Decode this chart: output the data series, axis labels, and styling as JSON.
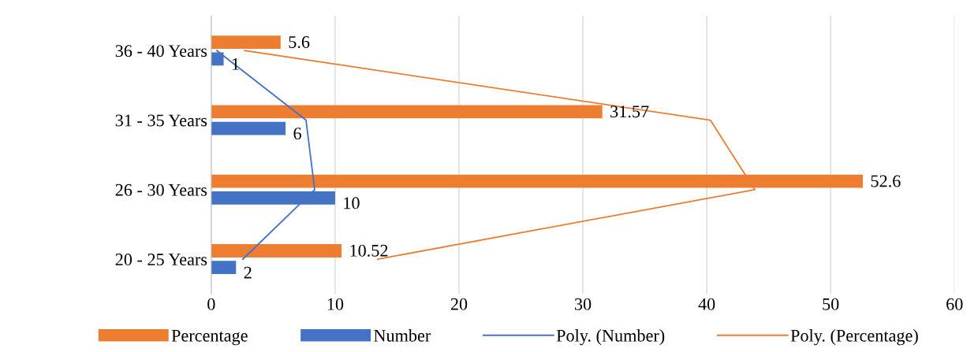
{
  "chart_data": {
    "type": "bar",
    "orientation": "horizontal",
    "categories": [
      "36 - 40 Years",
      "31 - 35 Years",
      "26 - 30 Years",
      "20 - 25 Years"
    ],
    "series": [
      {
        "name": "Percentage",
        "color": "#ed7d31",
        "values": [
          5.6,
          31.57,
          52.6,
          10.52
        ],
        "value_labels": [
          "5.6",
          "31.57",
          "52.6",
          "10.52"
        ]
      },
      {
        "name": "Number",
        "color": "#4472c4",
        "values": [
          1,
          6,
          10,
          2
        ],
        "value_labels": [
          "1",
          "6",
          "10",
          "2"
        ]
      },
      {
        "name": "Poly. (Number)",
        "type": "line",
        "color": "#4472c4",
        "values": [
          0.45,
          7.65,
          8.35,
          2.55
        ]
      },
      {
        "name": "Poly. (Percentage)",
        "type": "line",
        "color": "#ed7d31",
        "values": [
          2.69,
          40.29,
          43.87,
          13.43
        ]
      }
    ],
    "xlim": [
      0,
      60
    ],
    "xticks": [
      0,
      10,
      20,
      30,
      40,
      50,
      60
    ],
    "grid": "x",
    "legend": "bottom",
    "marker": "none",
    "line_style": "solid"
  }
}
